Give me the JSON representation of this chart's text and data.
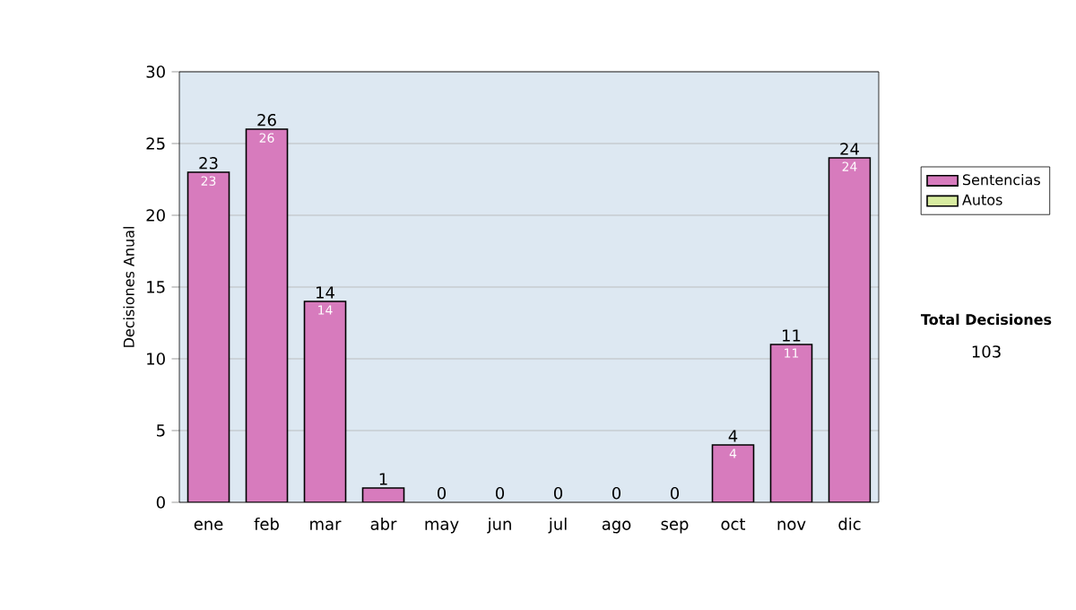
{
  "chart_data": {
    "type": "bar",
    "stacked": true,
    "ylabel": "Decisiones Anual",
    "categories": [
      "ene",
      "feb",
      "mar",
      "abr",
      "may",
      "jun",
      "jul",
      "ago",
      "sep",
      "oct",
      "nov",
      "dic"
    ],
    "series": [
      {
        "name": "Sentencias",
        "color": "#d77bbd",
        "values": [
          23,
          26,
          14,
          1,
          0,
          0,
          0,
          0,
          0,
          4,
          11,
          24
        ],
        "value_labels": [
          "23",
          "26",
          "14",
          null,
          null,
          null,
          null,
          null,
          null,
          "4",
          "11",
          "24"
        ]
      },
      {
        "name": "Autos",
        "color": "#d8eca0",
        "values": [
          0,
          0,
          0,
          0,
          0,
          0,
          0,
          0,
          0,
          0,
          0,
          0
        ]
      }
    ],
    "totals": [
      "23",
      "26",
      "14",
      "1",
      "0",
      "0",
      "0",
      "0",
      "0",
      "4",
      "11",
      "24"
    ],
    "ylim": [
      0,
      30
    ],
    "yticks": [
      0,
      5,
      10,
      15,
      20,
      25,
      30
    ],
    "grid": "y",
    "legend": "right",
    "annotations": [
      "Total Decisiones",
      "103"
    ]
  }
}
